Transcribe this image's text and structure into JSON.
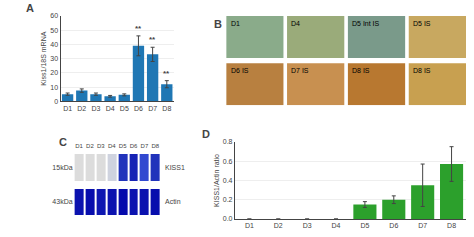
{
  "chart_data": [
    {
      "type": "bar",
      "title": "A",
      "categories": [
        "D1",
        "D2",
        "D3",
        "D4",
        "D5",
        "D6",
        "D7",
        "D8"
      ],
      "values": [
        5.0,
        7.5,
        5.0,
        3.5,
        4.5,
        39.0,
        33.0,
        12.0
      ],
      "errors": [
        0.8,
        1.2,
        0.8,
        0.6,
        0.7,
        7.0,
        5.0,
        2.5
      ],
      "ylabel": "Kiss1/18S mRNA",
      "ylim": [
        0,
        60
      ],
      "yticks": [
        0,
        10,
        20,
        30,
        40,
        50,
        60
      ],
      "grid": true,
      "annotations": [
        {
          "x": "D6",
          "text": "**"
        },
        {
          "x": "D7",
          "text": "**"
        },
        {
          "x": "D8",
          "text": "**"
        }
      ]
    },
    {
      "type": "image",
      "title": "B",
      "categories": [
        "D1",
        "D4",
        "D5 Int IS",
        "D5 IS",
        "D6 IS",
        "D7 IS",
        "D8 IS",
        "D8 IS"
      ],
      "colors": [
        "#8aab8a",
        "#9aab7a",
        "#7a9a8a",
        "#c8a860",
        "#b88040",
        "#c89050",
        "#b87830",
        "#c8a050"
      ]
    },
    {
      "type": "heatmap",
      "title": "C",
      "categories": [
        "D1",
        "D2",
        "D3",
        "D4",
        "D5",
        "D6",
        "D7",
        "D8"
      ],
      "series": [
        {
          "name": "KISS1",
          "values": [
            0.02,
            0.02,
            0.02,
            0.05,
            0.65,
            0.75,
            0.55,
            0.65
          ]
        },
        {
          "name": "Actin",
          "values": [
            0.85,
            0.88,
            0.82,
            0.85,
            0.9,
            0.85,
            0.85,
            0.88
          ]
        }
      ],
      "annotations": [
        {
          "y": "KISS1",
          "text": "15kDa"
        },
        {
          "y": "Actin",
          "text": "43kDa"
        }
      ]
    },
    {
      "type": "bar",
      "title": "D",
      "categories": [
        "D1",
        "D2",
        "D3",
        "D4",
        "D5",
        "D6",
        "D7",
        "D8"
      ],
      "values": [
        0.0,
        0.0,
        0.0,
        0.0,
        0.15,
        0.2,
        0.35,
        0.57
      ],
      "errors": [
        0.0,
        0.0,
        0.0,
        0.0,
        0.03,
        0.04,
        0.22,
        0.18
      ],
      "ylabel": "KISS1/Actin ratio",
      "ylim": [
        0,
        0.8
      ],
      "yticks": [
        {
          "value": 0,
          "label": "0.0"
        },
        0.2,
        0.4,
        0.6,
        0.8
      ],
      "grid": true
    }
  ]
}
